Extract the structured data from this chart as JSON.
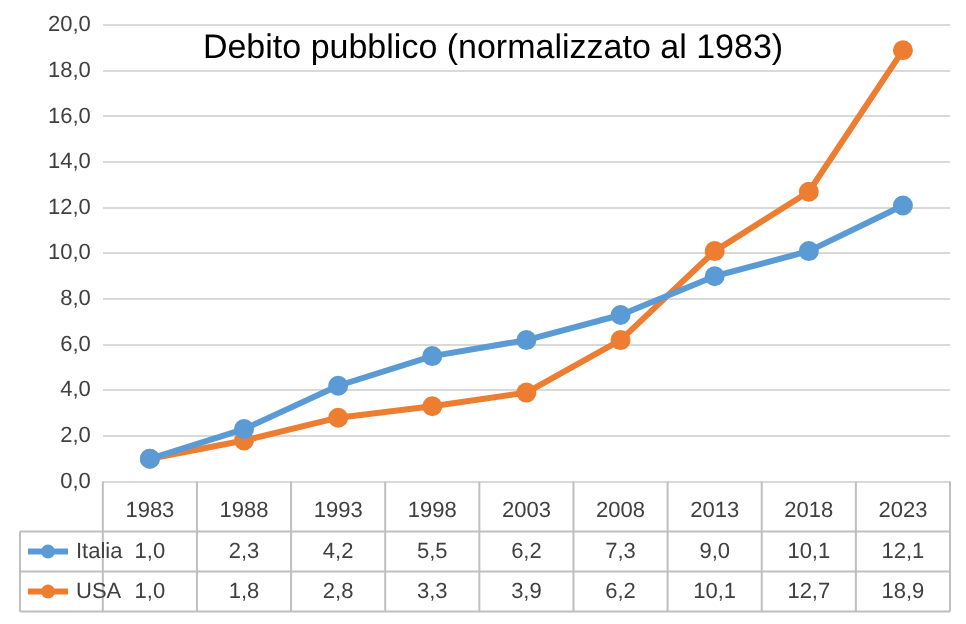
{
  "chart_data": {
    "type": "line",
    "title": "Debito pubblico (normalizzato al 1983)",
    "categories": [
      "1983",
      "1988",
      "1993",
      "1998",
      "2003",
      "2008",
      "2013",
      "2018",
      "2023"
    ],
    "series": [
      {
        "name": "Italia",
        "color": "#5b9bd5",
        "values": [
          1.0,
          2.3,
          4.2,
          5.5,
          6.2,
          7.3,
          9.0,
          10.1,
          12.1
        ],
        "value_labels": [
          "1,0",
          "2,3",
          "4,2",
          "5,5",
          "6,2",
          "7,3",
          "9,0",
          "10,1",
          "12,1"
        ]
      },
      {
        "name": "USA",
        "color": "#ed7d31",
        "values": [
          1.0,
          1.8,
          2.8,
          3.3,
          3.9,
          6.2,
          10.1,
          12.7,
          18.9
        ],
        "value_labels": [
          "1,0",
          "1,8",
          "2,8",
          "3,3",
          "3,9",
          "6,2",
          "10,1",
          "12,7",
          "18,9"
        ]
      }
    ],
    "ylim": [
      0,
      20
    ],
    "yticks": [
      {
        "value": 0,
        "label": "0,0"
      },
      {
        "value": 2,
        "label": "2,0"
      },
      {
        "value": 4,
        "label": "4,0"
      },
      {
        "value": 6,
        "label": "6,0"
      },
      {
        "value": 8,
        "label": "8,0"
      },
      {
        "value": 10,
        "label": "10,0"
      },
      {
        "value": 12,
        "label": "12,0"
      },
      {
        "value": 14,
        "label": "14,0"
      },
      {
        "value": 16,
        "label": "16,0"
      },
      {
        "value": 18,
        "label": "18,0"
      },
      {
        "value": 20,
        "label": "20,0"
      }
    ],
    "grid": "y",
    "legend": "bottom",
    "marker": "circle",
    "line_style": "solid"
  }
}
